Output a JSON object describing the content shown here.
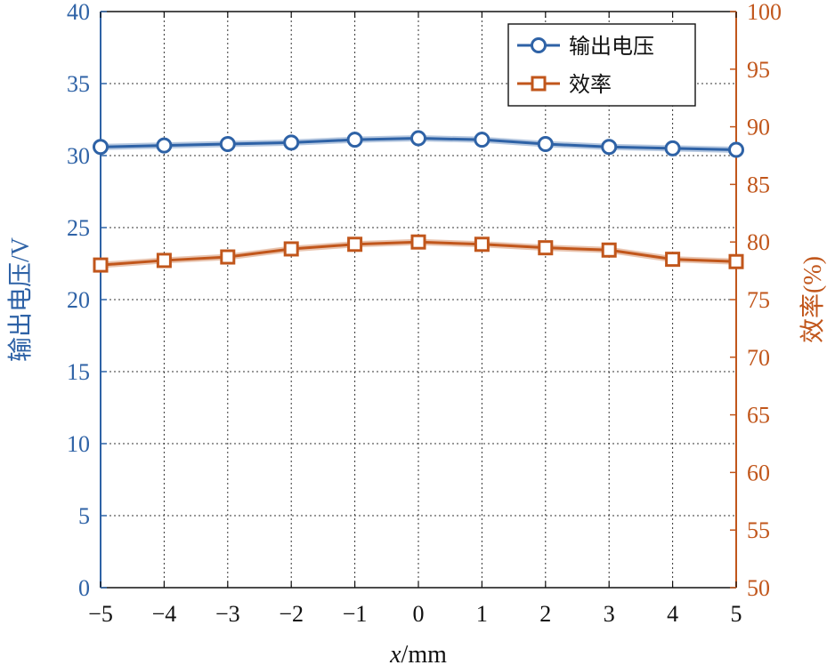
{
  "chart_data": {
    "type": "line",
    "x": [
      -5,
      -4,
      -3,
      -2,
      -1,
      0,
      1,
      2,
      3,
      4,
      5
    ],
    "xlabel": "x/mm",
    "xlabel_italic_part": "x",
    "xlabel_rest": "/mm",
    "x_tick_labels": [
      "−5",
      "−4",
      "−3",
      "−2",
      "−1",
      "0",
      "1",
      "2",
      "3",
      "4",
      "5"
    ],
    "xlim": [
      -5,
      5
    ],
    "y_left": {
      "label": "输出电压/V",
      "lim": [
        0,
        40
      ],
      "ticks": [
        0,
        5,
        10,
        15,
        20,
        25,
        30,
        35,
        40
      ],
      "color": "#2e62a6"
    },
    "y_right": {
      "label": "效率(%)",
      "lim": [
        50,
        100
      ],
      "ticks": [
        50,
        55,
        60,
        65,
        70,
        75,
        80,
        85,
        90,
        95,
        100
      ],
      "color": "#c1561b"
    },
    "series": [
      {
        "name": "输出电压",
        "axis": "left",
        "marker": "circle",
        "color": "#2e62a6",
        "values": [
          30.6,
          30.7,
          30.8,
          30.9,
          31.1,
          31.2,
          31.1,
          30.8,
          30.6,
          30.5,
          30.4
        ]
      },
      {
        "name": "效率",
        "axis": "right",
        "marker": "square",
        "color": "#c1561b",
        "values": [
          78.0,
          78.4,
          78.7,
          79.4,
          79.8,
          80.0,
          79.8,
          79.5,
          79.3,
          78.5,
          78.3
        ]
      }
    ],
    "grid": true,
    "legend_position": "top-right"
  }
}
